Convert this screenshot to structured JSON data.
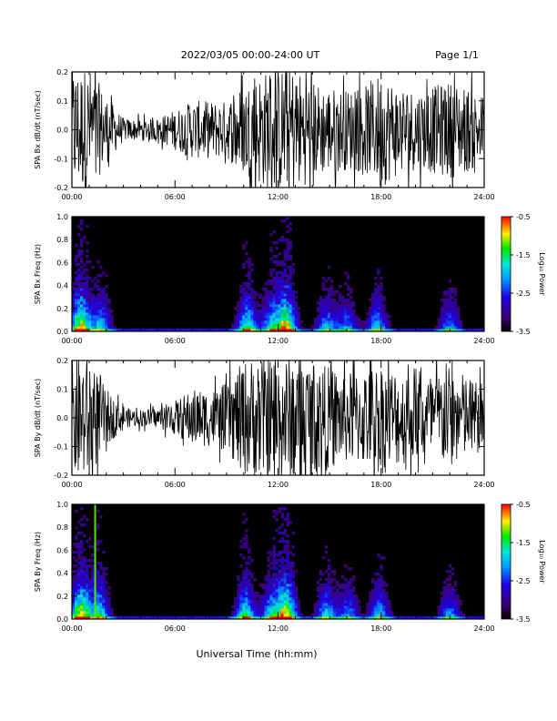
{
  "header": {
    "title": "2022/03/05  00:00-24:00 UT",
    "page": "Page 1/1"
  },
  "footer": {
    "xlabel": "Universal Time (hh:mm)"
  },
  "colorbar": {
    "label": "Log₁₀ Power",
    "ticks": [
      "-0.5",
      "-1.5",
      "-2.5",
      "-3.5"
    ],
    "range": [
      -3.5,
      -0.5
    ]
  },
  "chart_data": [
    {
      "type": "line",
      "ylabel": "SPA Bx dB/dt (nT/sec)",
      "x_ticks": [
        "00:00",
        "06:00",
        "12:00",
        "18:00",
        "24:00"
      ],
      "xlim_hours": [
        0,
        24
      ],
      "ylim": [
        -0.2,
        0.2
      ],
      "y_ticks": [
        "0.2",
        "0.1",
        "0.0",
        "-0.1",
        "-0.2"
      ],
      "envelope": {
        "x_hours": [
          0,
          1,
          2,
          3,
          4,
          5,
          6,
          7,
          8,
          9,
          10,
          11,
          12,
          13,
          14,
          15,
          16,
          17,
          18,
          19,
          20,
          21,
          22,
          23,
          24
        ],
        "amplitude": [
          0.22,
          0.22,
          0.12,
          0.04,
          0.035,
          0.04,
          0.07,
          0.1,
          0.1,
          0.1,
          0.16,
          0.2,
          0.22,
          0.22,
          0.17,
          0.15,
          0.14,
          0.15,
          0.2,
          0.16,
          0.14,
          0.15,
          0.17,
          0.15,
          0.12
        ]
      }
    },
    {
      "type": "heatmap",
      "ylabel": "SPA Bx Freq (Hz)",
      "x_ticks": [
        "00:00",
        "06:00",
        "12:00",
        "18:00",
        "24:00"
      ],
      "xlim_hours": [
        0,
        24
      ],
      "ylim": [
        0.0,
        1.0
      ],
      "y_ticks": [
        "1.0",
        "0.8",
        "0.6",
        "0.4",
        "0.2",
        "0.0"
      ],
      "zlim": [
        -3.5,
        -0.5
      ],
      "bursts": [
        {
          "hour": 0.5,
          "strength": 1.0
        },
        {
          "hour": 1.7,
          "strength": 0.6
        },
        {
          "hour": 10.2,
          "strength": 0.75
        },
        {
          "hour": 11.6,
          "strength": 0.6
        },
        {
          "hour": 12.5,
          "strength": 1.0
        },
        {
          "hour": 14.8,
          "strength": 0.55
        },
        {
          "hour": 16.0,
          "strength": 0.5
        },
        {
          "hour": 17.8,
          "strength": 0.6
        },
        {
          "hour": 22.0,
          "strength": 0.5
        }
      ]
    },
    {
      "type": "line",
      "ylabel": "SPA By dB/dt (nT/sec)",
      "x_ticks": [
        "00:00",
        "06:00",
        "12:00",
        "18:00",
        "24:00"
      ],
      "xlim_hours": [
        0,
        24
      ],
      "ylim": [
        -0.2,
        0.2
      ],
      "y_ticks": [
        "0.2",
        "0.1",
        "0.0",
        "-0.1",
        "-0.2"
      ],
      "envelope": {
        "x_hours": [
          0,
          1,
          2,
          3,
          4,
          5,
          6,
          7,
          8,
          9,
          10,
          11,
          12,
          13,
          14,
          15,
          16,
          17,
          18,
          19,
          20,
          21,
          22,
          23,
          24
        ],
        "amplitude": [
          0.22,
          0.22,
          0.1,
          0.035,
          0.03,
          0.035,
          0.06,
          0.1,
          0.1,
          0.12,
          0.2,
          0.22,
          0.22,
          0.22,
          0.2,
          0.18,
          0.16,
          0.17,
          0.2,
          0.17,
          0.15,
          0.16,
          0.18,
          0.15,
          0.12
        ]
      }
    },
    {
      "type": "heatmap",
      "ylabel": "SPA By Freq (Hz)",
      "x_ticks": [
        "00:00",
        "06:00",
        "12:00",
        "18:00",
        "24:00"
      ],
      "xlim_hours": [
        0,
        24
      ],
      "ylim": [
        0.0,
        1.0
      ],
      "y_ticks": [
        "1.0",
        "0.8",
        "0.6",
        "0.4",
        "0.2",
        "0.0"
      ],
      "zlim": [
        -3.5,
        -0.5
      ],
      "bursts": [
        {
          "hour": 0.5,
          "strength": 1.0
        },
        {
          "hour": 1.6,
          "strength": 0.7
        },
        {
          "hour": 10.1,
          "strength": 0.75
        },
        {
          "hour": 11.6,
          "strength": 0.6
        },
        {
          "hour": 12.5,
          "strength": 1.0
        },
        {
          "hour": 14.8,
          "strength": 0.6
        },
        {
          "hour": 16.1,
          "strength": 0.5
        },
        {
          "hour": 17.9,
          "strength": 0.6
        },
        {
          "hour": 22.0,
          "strength": 0.5
        }
      ],
      "narrow_line_hour": 1.3
    }
  ]
}
